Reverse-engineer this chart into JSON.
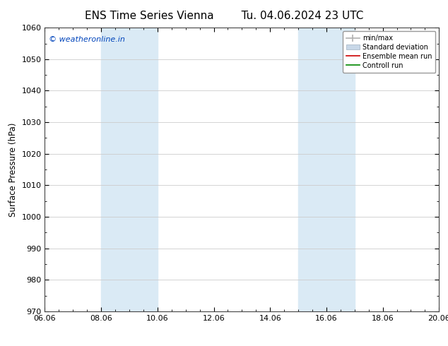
{
  "title": "ENS Time Series Vienna",
  "title2": "Tu. 04.06.2024 23 UTC",
  "ylabel": "Surface Pressure (hPa)",
  "ylim": [
    970,
    1060
  ],
  "yticks": [
    970,
    980,
    990,
    1000,
    1010,
    1020,
    1030,
    1040,
    1050,
    1060
  ],
  "xlim_start": 0,
  "xlim_end": 14,
  "xtick_labels": [
    "06.06",
    "08.06",
    "10.06",
    "12.06",
    "14.06",
    "16.06",
    "18.06",
    "20.06"
  ],
  "xtick_positions": [
    0,
    2,
    4,
    6,
    8,
    10,
    12,
    14
  ],
  "shaded_bands": [
    {
      "xmin": 2.0,
      "xmax": 4.0,
      "color": "#daeaf5",
      "alpha": 1.0
    },
    {
      "xmin": 9.0,
      "xmax": 11.0,
      "color": "#daeaf5",
      "alpha": 1.0
    }
  ],
  "legend_entries": [
    {
      "label": "min/max",
      "color": "#b0b0b0",
      "lw": 1.2,
      "style": "line_with_bar"
    },
    {
      "label": "Standard deviation",
      "color": "#c8d8e8",
      "lw": 8,
      "style": "band"
    },
    {
      "label": "Ensemble mean run",
      "color": "#cc0000",
      "lw": 1.2,
      "style": "line"
    },
    {
      "label": "Controll run",
      "color": "#008800",
      "lw": 1.2,
      "style": "line"
    }
  ],
  "watermark": "© weatheronline.in",
  "watermark_color": "#0044bb",
  "background_color": "#ffffff",
  "plot_bg_color": "#ffffff",
  "grid_color": "#cccccc",
  "title_fontsize": 11,
  "axis_label_fontsize": 8.5,
  "tick_fontsize": 8
}
